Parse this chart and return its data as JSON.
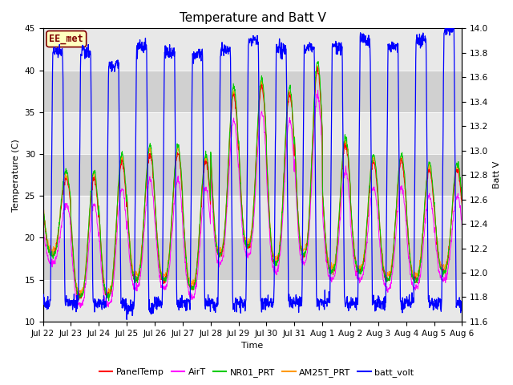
{
  "title": "Temperature and Batt V",
  "xlabel": "Time",
  "ylabel_left": "Temperature (C)",
  "ylabel_right": "Batt V",
  "annotation": "EE_met",
  "ylim_left": [
    10,
    45
  ],
  "ylim_right": [
    11.6,
    14.0
  ],
  "x_tick_labels": [
    "Jul 22",
    "Jul 23",
    "Jul 24",
    "Jul 25",
    "Jul 26",
    "Jul 27",
    "Jul 28",
    "Jul 29",
    "Jul 30",
    "Jul 31",
    "Aug 1",
    "Aug 2",
    "Aug 3",
    "Aug 4",
    "Aug 5",
    "Aug 6"
  ],
  "legend_labels": [
    "PanelTemp",
    "AirT",
    "NR01_PRT",
    "AM25T_PRT",
    "batt_volt"
  ],
  "legend_colors": [
    "#ff0000",
    "#ff00ff",
    "#00cc00",
    "#ff9900",
    "#0000ff"
  ],
  "bg_color": "#ffffff",
  "plot_bg_color": "#d8d8d8",
  "grid_color": "#ffffff",
  "title_fontsize": 11,
  "axis_fontsize": 8,
  "tick_fontsize": 7.5,
  "n_days": 15,
  "ppd": 96,
  "yticks_left": [
    10,
    15,
    20,
    25,
    30,
    35,
    40,
    45
  ],
  "yticks_right": [
    11.6,
    11.8,
    12.0,
    12.2,
    12.4,
    12.6,
    12.8,
    13.0,
    13.2,
    13.4,
    13.6,
    13.8,
    14.0
  ]
}
